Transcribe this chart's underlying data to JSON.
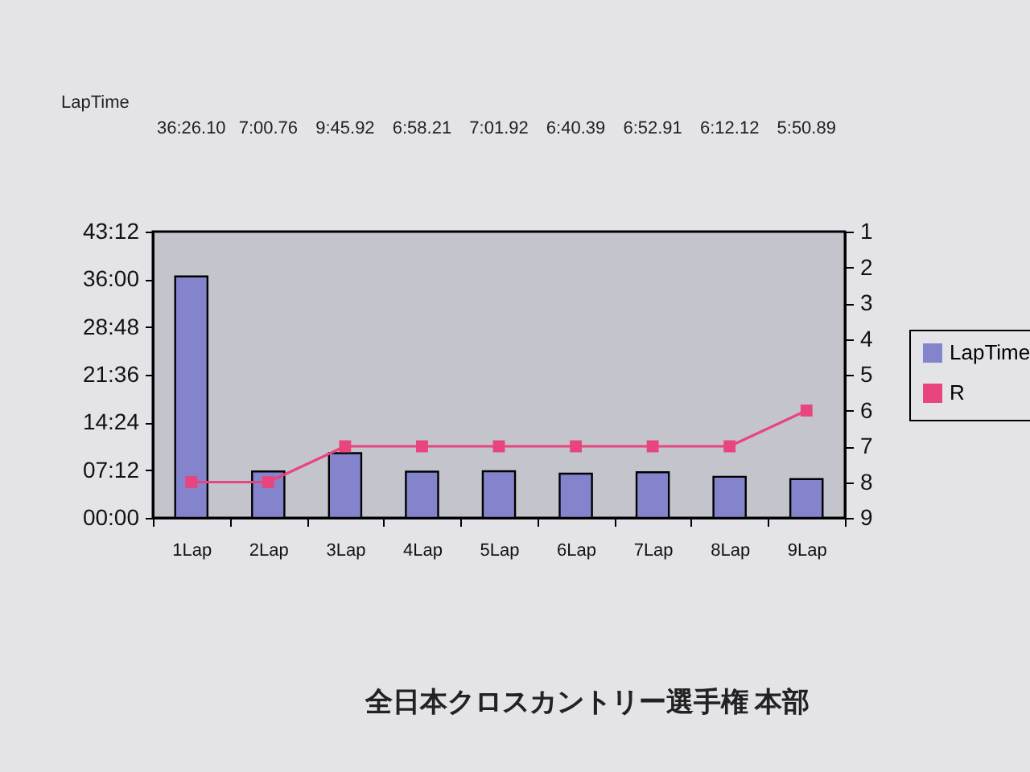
{
  "chart_data": {
    "type": "bar",
    "categories": [
      "1Lap",
      "2Lap",
      "3Lap",
      "4Lap",
      "5Lap",
      "6Lap",
      "7Lap",
      "8Lap",
      "9Lap"
    ],
    "series": [
      {
        "name": "LapTime",
        "color": "#8484cc",
        "values": [
          2186.1,
          420.76,
          585.92,
          418.21,
          421.92,
          400.39,
          412.91,
          372.12,
          350.89
        ],
        "value_labels": [
          "36:26.10",
          "7:00.76",
          "9:45.92",
          "6:58.21",
          "7:01.92",
          "6:40.39",
          "6:52.91",
          "6:12.12",
          "5:50.89"
        ]
      },
      {
        "name": "R",
        "type": "line",
        "axis": "y2",
        "color": "#e8457f",
        "values": [
          8,
          8,
          7,
          7,
          7,
          7,
          7,
          7,
          6
        ]
      }
    ],
    "ylim": [
      0,
      2592
    ],
    "yticks": [
      {
        "value": 0,
        "label": "00:00"
      },
      {
        "value": 432,
        "label": "07:12"
      },
      {
        "value": 864,
        "label": "14:24"
      },
      {
        "value": 1296,
        "label": "21:36"
      },
      {
        "value": 1728,
        "label": "28:48"
      },
      {
        "value": 2160,
        "label": "36:00"
      },
      {
        "value": 2592,
        "label": "43:12"
      }
    ],
    "y2lim": [
      9,
      1
    ],
    "y2ticks": [
      1,
      2,
      3,
      4,
      5,
      6,
      7,
      8,
      9
    ],
    "legend": "right",
    "marker": "square",
    "annotations": [
      "LapTime",
      "全日本クロスカントリー選手権 本部"
    ]
  }
}
